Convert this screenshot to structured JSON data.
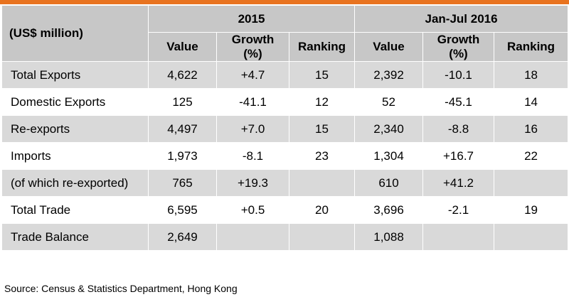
{
  "header": {
    "unit": "(US$ million)",
    "period_1": "2015",
    "period_2": "Jan-Jul 2016",
    "col_value": "Value",
    "col_growth_1": "Growth",
    "col_growth_2": "(%)",
    "col_ranking": "Ranking"
  },
  "rows": [
    {
      "label": "Total Exports",
      "v1": "4,622",
      "g1": "+4.7",
      "r1": "15",
      "v2": "2,392",
      "g2": "-10.1",
      "r2": "18"
    },
    {
      "label": "Domestic Exports",
      "v1": "125",
      "g1": "-41.1",
      "r1": "12",
      "v2": "52",
      "g2": "-45.1",
      "r2": "14"
    },
    {
      "label": "Re-exports",
      "v1": "4,497",
      "g1": "+7.0",
      "r1": "15",
      "v2": "2,340",
      "g2": "-8.8",
      "r2": "16"
    },
    {
      "label": "Imports",
      "v1": "1,973",
      "g1": "-8.1",
      "r1": "23",
      "v2": "1,304",
      "g2": "+16.7",
      "r2": "22"
    },
    {
      "label": "(of which re-exported)",
      "v1": "765",
      "g1": "+19.3",
      "r1": "",
      "v2": "610",
      "g2": "+41.2",
      "r2": ""
    },
    {
      "label": "Total Trade",
      "v1": "6,595",
      "g1": "+0.5",
      "r1": "20",
      "v2": "3,696",
      "g2": "-2.1",
      "r2": "19"
    },
    {
      "label": "Trade Balance",
      "v1": "2,649",
      "g1": "",
      "r1": "",
      "v2": "1,088",
      "g2": "",
      "r2": ""
    }
  ],
  "source": "Source: Census & Statistics Department, Hong Kong",
  "colors": {
    "accent_bar": "#e8731f",
    "header_bg": "#c7c7c7",
    "row_shade": "#d9d9d9"
  }
}
